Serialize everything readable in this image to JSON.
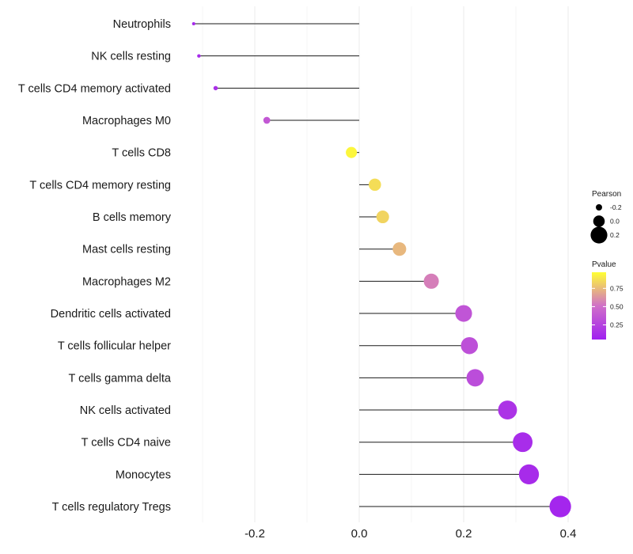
{
  "chart_data": {
    "type": "lollipop",
    "title": "",
    "xlabel": "",
    "ylabel": "",
    "xlim": [
      -0.36,
      0.42
    ],
    "xticks": [
      -0.2,
      0.0,
      0.2,
      0.4
    ],
    "xtick_labels": [
      "-0.2",
      "0.0",
      "0.2",
      "0.4"
    ],
    "grid": true,
    "categories": [
      "Neutrophils",
      "NK cells resting",
      "T cells CD4 memory activated",
      "Macrophages M0",
      "T cells CD8",
      "T cells CD4 memory resting",
      "B cells memory",
      "Mast cells resting",
      "Macrophages M2",
      "Dendritic cells activated",
      "T cells follicular helper",
      "T cells gamma delta",
      "NK cells activated",
      "T cells CD4 naive",
      "Monocytes",
      "T cells regulatory  Tregs"
    ],
    "pearson": [
      -0.317,
      -0.307,
      -0.275,
      -0.177,
      -0.015,
      0.03,
      0.045,
      0.077,
      0.138,
      0.2,
      0.211,
      0.222,
      0.284,
      0.313,
      0.325,
      0.385
    ],
    "pvalue": [
      0.06,
      0.07,
      0.1,
      0.35,
      0.97,
      0.88,
      0.85,
      0.75,
      0.55,
      0.33,
      0.3,
      0.28,
      0.12,
      0.08,
      0.07,
      0.04
    ],
    "legend": {
      "size_title": "Pearson",
      "size_items": [
        {
          "label": "-0.2",
          "value": -0.2
        },
        {
          "label": "0.0",
          "value": 0.0
        },
        {
          "label": "0.2",
          "value": 0.2
        }
      ],
      "color_title": "Pvalue",
      "color_ticks": [
        {
          "label": "0.75",
          "value": 0.75
        },
        {
          "label": "0.50",
          "value": 0.5
        },
        {
          "label": "0.25",
          "value": 0.25
        }
      ],
      "color_low": "#a020f0",
      "color_mid": "#d070c8",
      "color_high": "#ffff33",
      "position": "right"
    }
  }
}
